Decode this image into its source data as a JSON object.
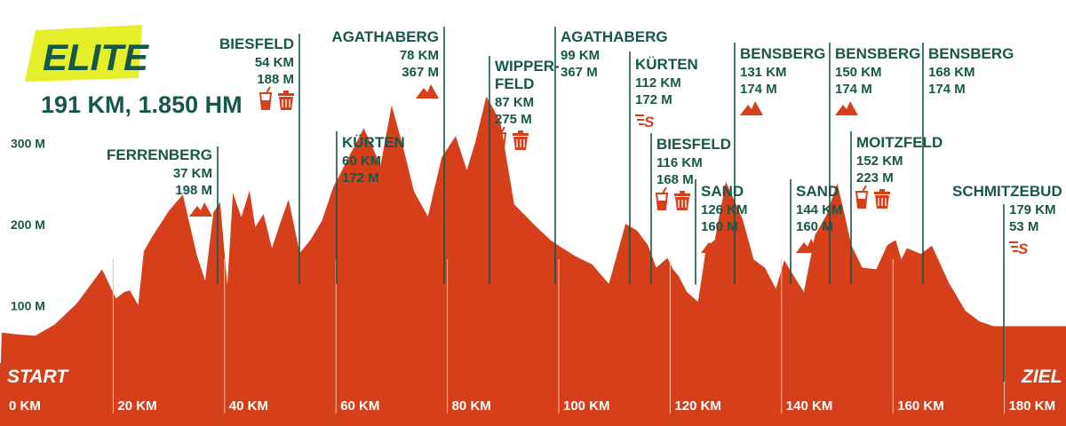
{
  "badge": "ELITE",
  "summary": "191 KM, 1.850 HM",
  "start_label": "START",
  "finish_label": "ZIEL",
  "chart_data": {
    "type": "area",
    "title": "ELITE",
    "subtitle": "191 KM, 1.850 HM",
    "xlabel": "",
    "ylabel": "",
    "xlim": [
      0,
      191
    ],
    "ylim": [
      0,
      400
    ],
    "x_ticks": [
      {
        "value": 0,
        "label": "0 KM"
      },
      {
        "value": 20,
        "label": "20 KM"
      },
      {
        "value": 40,
        "label": "40 KM"
      },
      {
        "value": 60,
        "label": "60 KM"
      },
      {
        "value": 80,
        "label": "80 KM"
      },
      {
        "value": 100,
        "label": "100 KM"
      },
      {
        "value": 120,
        "label": "120 KM"
      },
      {
        "value": 140,
        "label": "140 KM"
      },
      {
        "value": 160,
        "label": "160 KM"
      },
      {
        "value": 180,
        "label": "180 KM"
      }
    ],
    "y_ticks": [
      {
        "value": 100,
        "label": "100 M"
      },
      {
        "value": 200,
        "label": "200 M"
      },
      {
        "value": 300,
        "label": "300 M"
      }
    ],
    "profile": {
      "x": [
        0,
        2.5,
        6,
        9.5,
        13.5,
        18,
        20.5,
        22,
        23,
        24.5,
        25.5,
        27,
        30,
        32.5,
        35,
        36.5,
        38,
        39.2,
        40.5,
        41.5,
        43,
        44.5,
        45.5,
        47,
        48.5,
        50,
        51.5,
        53.5,
        55.5,
        57.5,
        59.5,
        62,
        65,
        68,
        70,
        72,
        74,
        76.5,
        79,
        81.5,
        83.5,
        85,
        87,
        89.5,
        92,
        94,
        96,
        98.5,
        100.5,
        103,
        106,
        109,
        112,
        114,
        116,
        117.5,
        118.5,
        119.5,
        120.5,
        121.5,
        123,
        125,
        126.5,
        128,
        130,
        133,
        135,
        137,
        139,
        140.5,
        142,
        144,
        146,
        148,
        150,
        151.5,
        152.5,
        154.5,
        157,
        159,
        160.5,
        161.5,
        162.5,
        165,
        167,
        170,
        173,
        175.5,
        178,
        180.5,
        184,
        188,
        191
      ],
      "y": [
        68,
        66,
        64,
        78,
        104,
        146,
        110,
        118,
        120,
        102,
        168,
        186,
        218,
        238,
        164,
        132,
        216,
        229,
        126,
        240,
        210,
        243,
        198,
        214,
        172,
        203,
        232,
        166,
        183,
        206,
        247,
        280,
        320,
        274,
        348,
        298,
        242,
        211,
        284,
        310,
        268,
        302,
        359,
        328,
        226,
        212,
        198,
        182,
        173,
        162,
        152,
        128,
        202,
        194,
        176,
        148,
        154,
        160,
        146,
        138,
        118,
        106,
        174,
        182,
        254,
        208,
        158,
        148,
        122,
        157,
        140,
        118,
        188,
        212,
        252,
        208,
        176,
        148,
        146,
        176,
        182,
        158,
        172,
        165,
        175,
        130,
        95,
        82,
        76,
        76,
        76,
        76,
        76
      ]
    },
    "markers": [
      {
        "name": "FERRENBERG",
        "km": 37,
        "alt": 198,
        "km_label": "37 KM",
        "alt_label": "198 M",
        "icons": [
          "mountain"
        ]
      },
      {
        "name": "BIESFELD",
        "km": 54,
        "alt": 188,
        "km_label": "54 KM",
        "alt_label": "188 M",
        "icons": [
          "drink",
          "bin"
        ]
      },
      {
        "name": "KÜRTEN",
        "km": 60,
        "alt": 172,
        "km_label": "60 KM",
        "alt_label": "172 M",
        "icons": [
          "sprint"
        ]
      },
      {
        "name": "AGATHABERG",
        "km": 78,
        "alt": 367,
        "km_label": "78 KM",
        "alt_label": "367 M",
        "icons": [
          "mountain"
        ]
      },
      {
        "name_lines": [
          "WIPPER-",
          "FELD"
        ],
        "km": 87,
        "alt": 275,
        "km_label": "87 KM",
        "alt_label": "275 M",
        "icons": [
          "drink",
          "bin"
        ]
      },
      {
        "name": "AGATHABERG",
        "km": 99,
        "alt": 367,
        "km_label": "99 KM",
        "alt_label": "367 M",
        "icons": []
      },
      {
        "name": "KÜRTEN",
        "km": 112,
        "alt": 172,
        "km_label": "112 KM",
        "alt_label": "172 M",
        "icons": [
          "sprint"
        ]
      },
      {
        "name": "BIESFELD",
        "km": 116,
        "alt": 168,
        "km_label": "116 KM",
        "alt_label": "168 M",
        "icons": [
          "drink",
          "bin"
        ]
      },
      {
        "name": "SAND",
        "km": 126,
        "alt": 160,
        "km_label": "126 KM",
        "alt_label": "160 M",
        "icons": [
          "mountain"
        ]
      },
      {
        "name": "BENSBERG",
        "km": 131,
        "alt": 174,
        "km_label": "131 KM",
        "alt_label": "174 M",
        "icons": [
          "mountain"
        ]
      },
      {
        "name": "SAND",
        "km": 144,
        "alt": 160,
        "km_label": "144 KM",
        "alt_label": "160 M",
        "icons": [
          "mountain"
        ]
      },
      {
        "name": "BENSBERG",
        "km": 150,
        "alt": 174,
        "km_label": "150 KM",
        "alt_label": "174 M",
        "icons": [
          "mountain"
        ]
      },
      {
        "name": "MOITZFELD",
        "km": 152,
        "alt": 223,
        "km_label": "152 KM",
        "alt_label": "223 M",
        "icons": [
          "drink",
          "bin"
        ]
      },
      {
        "name": "BENSBERG",
        "km": 168,
        "alt": 174,
        "km_label": "168 KM",
        "alt_label": "174 M",
        "icons": []
      },
      {
        "name": "SCHMITZEBUD",
        "km": 179,
        "alt": 53,
        "km_label": "179 KM",
        "alt_label": "53 M",
        "icons": [
          "sprint"
        ]
      }
    ]
  },
  "colors": {
    "profile_fill": "#d5401b",
    "text": "#17574a",
    "badge_bg": "#e4ef2a",
    "axis_bg": "#d5401b",
    "axis_text": "#ffffff",
    "marker_line": "#17574a",
    "icon": "#d5401b",
    "tick_line": "#f2c0ae"
  },
  "icons": {
    "mountain": "mountain-icon",
    "drink": "drink-cup-icon",
    "bin": "trash-bin-icon",
    "sprint": "sprint-icon"
  }
}
